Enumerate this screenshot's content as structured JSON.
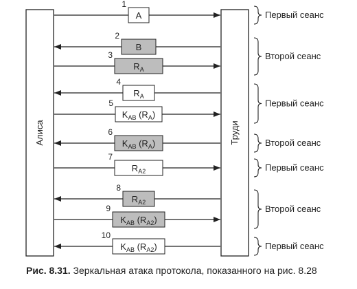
{
  "parties": {
    "left": "Алиса",
    "right": "Труди"
  },
  "messages": [
    {
      "n": "1",
      "dir": "right",
      "shaded": false,
      "label": [
        [
          "A",
          ""
        ]
      ]
    },
    {
      "n": "2",
      "dir": "left",
      "shaded": true,
      "label": [
        [
          "B",
          ""
        ]
      ]
    },
    {
      "n": "3",
      "dir": "right",
      "shaded": true,
      "label": [
        [
          "R",
          ""
        ],
        [
          "A",
          "sub"
        ]
      ]
    },
    {
      "n": "4",
      "dir": "left",
      "shaded": false,
      "label": [
        [
          "R",
          ""
        ],
        [
          "A",
          "sub"
        ]
      ]
    },
    {
      "n": "5",
      "dir": "right",
      "shaded": false,
      "label": [
        [
          "K",
          ""
        ],
        [
          "AB",
          "sub"
        ],
        [
          " (R",
          ""
        ],
        [
          "A",
          "sub"
        ],
        [
          ")",
          ""
        ]
      ]
    },
    {
      "n": "6",
      "dir": "left",
      "shaded": true,
      "label": [
        [
          "K",
          ""
        ],
        [
          "AB",
          "sub"
        ],
        [
          " (R",
          ""
        ],
        [
          "A",
          "sub"
        ],
        [
          ")",
          ""
        ]
      ]
    },
    {
      "n": "7",
      "dir": "right",
      "shaded": false,
      "label": [
        [
          "R",
          ""
        ],
        [
          "A2",
          "sub"
        ]
      ]
    },
    {
      "n": "8",
      "dir": "left",
      "shaded": true,
      "label": [
        [
          "R",
          ""
        ],
        [
          "A2",
          "sub"
        ]
      ]
    },
    {
      "n": "9",
      "dir": "right",
      "shaded": true,
      "label": [
        [
          "K",
          ""
        ],
        [
          "AB",
          "sub"
        ],
        [
          " (R",
          ""
        ],
        [
          "A2",
          "sub"
        ],
        [
          ")",
          ""
        ]
      ]
    },
    {
      "n": "10",
      "dir": "left",
      "shaded": false,
      "label": [
        [
          "K",
          ""
        ],
        [
          "AB",
          "sub"
        ],
        [
          " (R",
          ""
        ],
        [
          "A2",
          "sub"
        ],
        [
          ")",
          ""
        ]
      ]
    }
  ],
  "sessions": [
    {
      "label": "Первый сеанс",
      "from": 1,
      "to": 1
    },
    {
      "label": "Второй сеанс",
      "from": 2,
      "to": 3
    },
    {
      "label": "Первый сеанс",
      "from": 4,
      "to": 5
    },
    {
      "label": "Второй сеанс",
      "from": 6,
      "to": 6
    },
    {
      "label": "Первый сеанс",
      "from": 7,
      "to": 7
    },
    {
      "label": "Второй сеанс",
      "from": 8,
      "to": 9
    },
    {
      "label": "Первый сеанс",
      "from": 10,
      "to": 10
    }
  ],
  "caption": {
    "prefix": "Рис. 8.31.",
    "text": " Зеркальная атака протокола, показанного на рис. 8.28"
  },
  "colors": {
    "shade": "#bdbdbd",
    "line": "#222222",
    "box": "#ffffff"
  }
}
